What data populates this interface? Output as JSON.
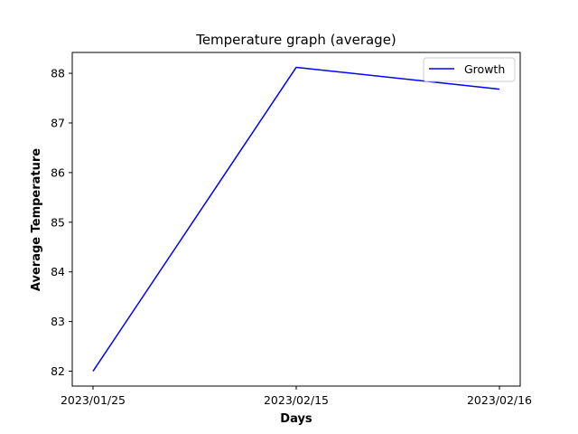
{
  "chart_data": {
    "type": "line",
    "title": "Temperature graph (average)",
    "xlabel": "Days",
    "ylabel": "Average Temperature",
    "categories": [
      "2023/01/25",
      "2023/02/15",
      "2023/02/16"
    ],
    "series": [
      {
        "name": "Growth",
        "values": [
          82.0,
          88.12,
          87.68
        ],
        "color": "#0000ff"
      }
    ],
    "yticks": [
      82,
      83,
      84,
      85,
      86,
      87,
      88
    ],
    "ylim": [
      81.7,
      88.42
    ],
    "grid": false,
    "legend_position": "upper right"
  }
}
